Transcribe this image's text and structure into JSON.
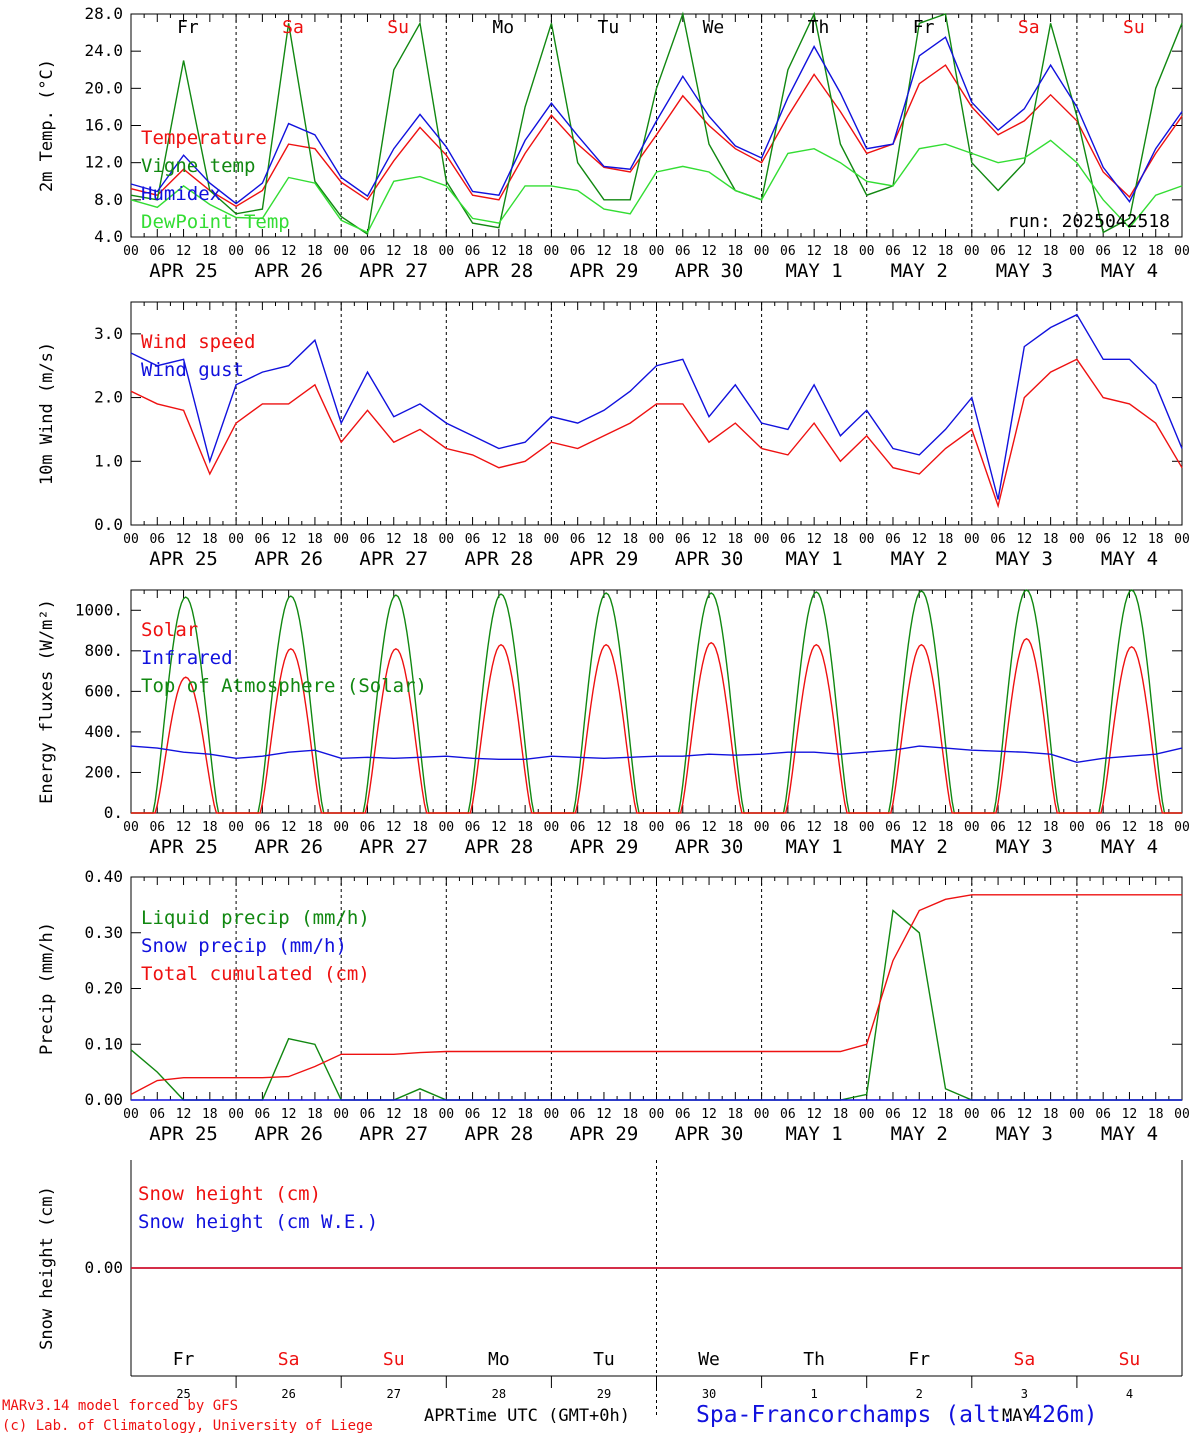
{
  "run_label": "run: 2025042518",
  "footer": {
    "model_line": "MARv3.14 model forced by GFS",
    "lab_line": "(c) Lab. of Climatology, University of Liege",
    "time_label": "Time UTC (GMT+0h)",
    "station": "Spa-Francorchamps (alt. 426m)",
    "month_left": "APR",
    "month_right": "MAY"
  },
  "colors": {
    "red": "#ee1111",
    "green": "#118811",
    "blue": "#1111dd",
    "lime": "#33dd33"
  },
  "chart_data": [
    {
      "type": "line",
      "ylabel": "2m Temp. (°C)",
      "ylim": [
        4,
        28
      ],
      "yticks": [
        "4.0",
        "8.0",
        "12.0",
        "16.0",
        "20.0",
        "24.0",
        "28.0"
      ],
      "x_hours": [
        0,
        6,
        12,
        18,
        24,
        30,
        36,
        42,
        48,
        54,
        60,
        66,
        72,
        78,
        84,
        90,
        96,
        102,
        108,
        114,
        120,
        126,
        132,
        138,
        144,
        150,
        156,
        162,
        168,
        174,
        180,
        186,
        192,
        198,
        204,
        210,
        216,
        222,
        228,
        234,
        240
      ],
      "days": [
        "Fr",
        "Sa",
        "Su",
        "Mo",
        "Tu",
        "We",
        "Th",
        "Fr",
        "Sa",
        "Su"
      ],
      "date_labels": [
        "APR 25",
        "APR 26",
        "APR 27",
        "APR 28",
        "APR 29",
        "APR 30",
        "MAY  1",
        "MAY  2",
        "MAY  3",
        "MAY  4"
      ],
      "hour_ticks": [
        "00",
        "06",
        "12",
        "18"
      ],
      "series": [
        {
          "name": "Temperature",
          "color": "red",
          "values": [
            9.2,
            8.5,
            11.3,
            9,
            7.3,
            9,
            14,
            13.5,
            9.9,
            8,
            12.2,
            15.8,
            12.8,
            8.5,
            8,
            13,
            17.1,
            14,
            11.5,
            11,
            15,
            19.2,
            16,
            13.5,
            12,
            17,
            21.5,
            17.5,
            13,
            14,
            20.5,
            22.5,
            18,
            15,
            16.5,
            19.3,
            16.5,
            11,
            8.3,
            13,
            17
          ]
        },
        {
          "name": "Vigne temp",
          "color": "green",
          "values": [
            8.5,
            8,
            23,
            9,
            6.5,
            7,
            27,
            10,
            6.2,
            4.3,
            22,
            27,
            10,
            5.5,
            5,
            18,
            27,
            12,
            8,
            8,
            20,
            28,
            14,
            9,
            8,
            22,
            28,
            14,
            8.5,
            9.5,
            27,
            28,
            12,
            9,
            12,
            27,
            17,
            4.5,
            6,
            20,
            27
          ]
        },
        {
          "name": "Humidex",
          "color": "blue",
          "values": [
            9.7,
            8.9,
            12.8,
            9.8,
            7.6,
            9.8,
            16.2,
            15,
            10.4,
            8.4,
            13.5,
            17.2,
            13.7,
            8.9,
            8.5,
            14.4,
            18.4,
            14.9,
            11.6,
            11.3,
            16.5,
            21.3,
            17,
            13.8,
            12.5,
            19,
            24.5,
            19.5,
            13.5,
            14,
            23.5,
            25.5,
            18.5,
            15.5,
            17.8,
            22.5,
            18,
            11.5,
            7.8,
            13.5,
            17.5
          ]
        },
        {
          "name": "DewPoint Temp",
          "color": "lime",
          "values": [
            8,
            7.2,
            9.5,
            7.5,
            6.1,
            6,
            10.4,
            9.8,
            5.8,
            4.5,
            10,
            10.5,
            9.5,
            6,
            5.5,
            9.5,
            9.5,
            9,
            7,
            6.5,
            11,
            11.6,
            11,
            9,
            8,
            13,
            13.5,
            12,
            10,
            9.5,
            13.5,
            14,
            13,
            12,
            12.5,
            14.4,
            12,
            8,
            5,
            8.5,
            9.5
          ]
        }
      ]
    },
    {
      "type": "line",
      "ylabel": "10m Wind (m/s)",
      "ylim": [
        0,
        3.5
      ],
      "yticks": [
        "0.0",
        "1.0",
        "2.0",
        "3.0"
      ],
      "x_hours": [
        0,
        6,
        12,
        18,
        24,
        30,
        36,
        42,
        48,
        54,
        60,
        66,
        72,
        78,
        84,
        90,
        96,
        102,
        108,
        114,
        120,
        126,
        132,
        138,
        144,
        150,
        156,
        162,
        168,
        174,
        180,
        186,
        192,
        198,
        204,
        210,
        216,
        222,
        228,
        234,
        240
      ],
      "date_labels": [
        "APR 25",
        "APR 26",
        "APR 27",
        "APR 28",
        "APR 29",
        "APR 30",
        "MAY  1",
        "MAY  2",
        "MAY  3",
        "MAY  4"
      ],
      "hour_ticks": [
        "00",
        "06",
        "12",
        "18"
      ],
      "series": [
        {
          "name": "Wind speed",
          "color": "red",
          "values": [
            2.1,
            1.9,
            1.8,
            0.8,
            1.6,
            1.9,
            1.9,
            2.2,
            1.3,
            1.8,
            1.3,
            1.5,
            1.2,
            1.1,
            0.9,
            1.0,
            1.3,
            1.2,
            1.4,
            1.6,
            1.9,
            1.9,
            1.3,
            1.6,
            1.2,
            1.1,
            1.6,
            1.0,
            1.4,
            0.9,
            0.8,
            1.2,
            1.5,
            0.3,
            2.0,
            2.4,
            2.6,
            2.0,
            1.9,
            1.6,
            0.9
          ]
        },
        {
          "name": "Wind gust",
          "color": "blue",
          "values": [
            2.7,
            2.5,
            2.6,
            1.0,
            2.2,
            2.4,
            2.5,
            2.9,
            1.6,
            2.4,
            1.7,
            1.9,
            1.6,
            1.4,
            1.2,
            1.3,
            1.7,
            1.6,
            1.8,
            2.1,
            2.5,
            2.6,
            1.7,
            2.2,
            1.6,
            1.5,
            2.2,
            1.4,
            1.8,
            1.2,
            1.1,
            1.5,
            2.0,
            0.4,
            2.8,
            3.1,
            3.3,
            2.6,
            2.6,
            2.2,
            1.2
          ]
        }
      ]
    },
    {
      "type": "line",
      "ylabel": "Energy fluxes (W/m²)",
      "ylim": [
        0,
        1100
      ],
      "yticks": [
        "0.",
        "200.",
        "400.",
        "600.",
        "800.",
        "1000."
      ],
      "x_hours": [
        0,
        6,
        12,
        18,
        24,
        30,
        36,
        42,
        48,
        54,
        60,
        66,
        72,
        78,
        84,
        90,
        96,
        102,
        108,
        114,
        120,
        126,
        132,
        138,
        144,
        150,
        156,
        162,
        168,
        174,
        180,
        186,
        192,
        198,
        204,
        210,
        216,
        222,
        228,
        234,
        240
      ],
      "date_labels": [
        "APR 25",
        "APR 26",
        "APR 27",
        "APR 28",
        "APR 29",
        "APR 30",
        "MAY  1",
        "MAY  2",
        "MAY  3",
        "MAY  4"
      ],
      "hour_ticks": [
        "00",
        "06",
        "12",
        "18"
      ],
      "series": [
        {
          "name": "Solar",
          "color": "red",
          "peaks": [
            670,
            810,
            810,
            830,
            830,
            840,
            830,
            830,
            860,
            820
          ]
        },
        {
          "name": "Infrared",
          "color": "blue",
          "values": [
            330,
            320,
            300,
            290,
            270,
            280,
            300,
            310,
            270,
            275,
            270,
            275,
            280,
            270,
            265,
            265,
            280,
            275,
            270,
            275,
            280,
            280,
            290,
            285,
            290,
            300,
            300,
            290,
            300,
            310,
            330,
            320,
            310,
            305,
            300,
            290,
            250,
            270,
            280,
            290,
            320
          ]
        },
        {
          "name": "Top of Atmosphere (Solar)",
          "color": "green",
          "peaks": [
            1065,
            1070,
            1075,
            1080,
            1085,
            1085,
            1090,
            1095,
            1100,
            1100
          ]
        }
      ]
    },
    {
      "type": "line",
      "ylabel": "Precip (mm/h)",
      "ylim": [
        0,
        0.4
      ],
      "yticks": [
        "0.00",
        "0.10",
        "0.20",
        "0.30",
        "0.40"
      ],
      "x_hours": [
        0,
        6,
        12,
        18,
        24,
        30,
        36,
        42,
        48,
        54,
        60,
        66,
        72,
        78,
        84,
        90,
        96,
        102,
        108,
        114,
        120,
        126,
        132,
        138,
        144,
        150,
        156,
        162,
        168,
        174,
        180,
        186,
        192,
        198,
        204,
        210,
        216,
        222,
        228,
        234,
        240
      ],
      "date_labels": [
        "APR 25",
        "APR 26",
        "APR 27",
        "APR 28",
        "APR 29",
        "APR 30",
        "MAY  1",
        "MAY  2",
        "MAY  3",
        "MAY  4"
      ],
      "hour_ticks": [
        "00",
        "06",
        "12",
        "18"
      ],
      "series": [
        {
          "name": "Liquid precip (mm/h)",
          "color": "green",
          "values": [
            0.09,
            0.05,
            0,
            0,
            0,
            0,
            0.11,
            0.1,
            0,
            0,
            0,
            0.02,
            0,
            0,
            0,
            0,
            0,
            0,
            0,
            0,
            0,
            0,
            0,
            0,
            0,
            0,
            0,
            0,
            0.01,
            0.34,
            0.3,
            0.02,
            0,
            0,
            0,
            0,
            0,
            0,
            0,
            0,
            0
          ]
        },
        {
          "name": "Snow precip (mm/h)",
          "color": "blue",
          "values": [
            0,
            0,
            0,
            0,
            0,
            0,
            0,
            0,
            0,
            0,
            0,
            0,
            0,
            0,
            0,
            0,
            0,
            0,
            0,
            0,
            0,
            0,
            0,
            0,
            0,
            0,
            0,
            0,
            0,
            0,
            0,
            0,
            0,
            0,
            0,
            0,
            0,
            0,
            0,
            0,
            0
          ]
        },
        {
          "name": "Total cumulated (cm)",
          "color": "red",
          "values": [
            0.01,
            0.035,
            0.04,
            0.04,
            0.04,
            0.04,
            0.042,
            0.06,
            0.082,
            0.082,
            0.082,
            0.085,
            0.087,
            0.087,
            0.087,
            0.087,
            0.087,
            0.087,
            0.087,
            0.087,
            0.087,
            0.087,
            0.087,
            0.087,
            0.087,
            0.087,
            0.087,
            0.087,
            0.1,
            0.25,
            0.34,
            0.36,
            0.368,
            0.368,
            0.368,
            0.368,
            0.368,
            0.368,
            0.368,
            0.368,
            0.368
          ]
        }
      ]
    },
    {
      "type": "line",
      "ylabel": "Snow height (cm)",
      "ylim": [
        -1,
        1
      ],
      "yticks": [
        "0.00"
      ],
      "days": [
        "Fr",
        "Sa",
        "Su",
        "Mo",
        "Tu",
        "We",
        "Th",
        "Fr",
        "Sa",
        "Su"
      ],
      "day_numbers": [
        "25",
        "26",
        "27",
        "28",
        "29",
        "30",
        "1",
        "2",
        "3",
        "4"
      ],
      "series": [
        {
          "name": "Snow height (cm)",
          "color": "red",
          "values": [
            0,
            0
          ]
        },
        {
          "name": "Snow height (cm W.E.)",
          "color": "blue",
          "values": [
            0,
            0
          ]
        }
      ]
    }
  ]
}
